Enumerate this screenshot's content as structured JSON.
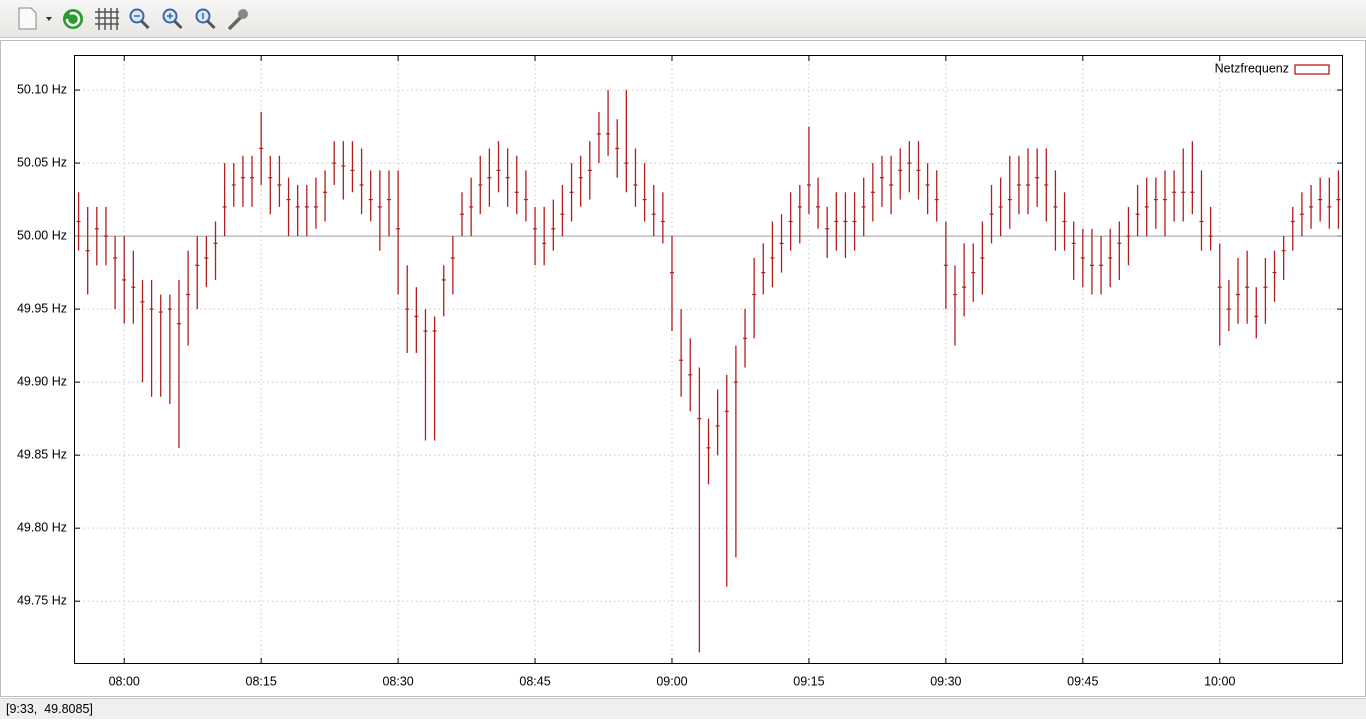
{
  "chart_data": {
    "type": "errorbar",
    "legend_position": "top-right",
    "grid": true,
    "reference_line": 50.0,
    "xlim": [
      474.5,
      613.5
    ],
    "xticks": [
      {
        "value": 480,
        "label": "08:00"
      },
      {
        "value": 495,
        "label": "08:15"
      },
      {
        "value": 510,
        "label": "08:30"
      },
      {
        "value": 525,
        "label": "08:45"
      },
      {
        "value": 540,
        "label": "09:00"
      },
      {
        "value": 555,
        "label": "09:15"
      },
      {
        "value": 570,
        "label": "09:30"
      },
      {
        "value": 585,
        "label": "09:45"
      },
      {
        "value": 600,
        "label": "10:00"
      }
    ],
    "ylim": [
      49.707,
      50.124
    ],
    "yticks": [
      {
        "value": 49.75,
        "label": "49.75 Hz"
      },
      {
        "value": 49.8,
        "label": "49.80 Hz"
      },
      {
        "value": 49.85,
        "label": "49.85 Hz"
      },
      {
        "value": 49.9,
        "label": "49.90 Hz"
      },
      {
        "value": 49.95,
        "label": "49.95 Hz"
      },
      {
        "value": 50.0,
        "label": "50.00 Hz"
      },
      {
        "value": 50.05,
        "label": "50.05 Hz"
      },
      {
        "value": 50.1,
        "label": "50.10 Hz"
      }
    ],
    "x": [
      475,
      476,
      477,
      478,
      479,
      480,
      481,
      482,
      483,
      484,
      485,
      486,
      487,
      488,
      489,
      490,
      491,
      492,
      493,
      494,
      495,
      496,
      497,
      498,
      499,
      500,
      501,
      502,
      503,
      504,
      505,
      506,
      507,
      508,
      509,
      510,
      511,
      512,
      513,
      514,
      515,
      516,
      517,
      518,
      519,
      520,
      521,
      522,
      523,
      524,
      525,
      526,
      527,
      528,
      529,
      530,
      531,
      532,
      533,
      534,
      535,
      536,
      537,
      538,
      539,
      540,
      541,
      542,
      543,
      544,
      545,
      546,
      547,
      548,
      549,
      550,
      551,
      552,
      553,
      554,
      555,
      556,
      557,
      558,
      559,
      560,
      561,
      562,
      563,
      564,
      565,
      566,
      567,
      568,
      569,
      570,
      571,
      572,
      573,
      574,
      575,
      576,
      577,
      578,
      579,
      580,
      581,
      582,
      583,
      584,
      585,
      586,
      587,
      588,
      589,
      590,
      591,
      592,
      593,
      594,
      595,
      596,
      597,
      598,
      599,
      600,
      601,
      602,
      603,
      604,
      605,
      606,
      607,
      608,
      609,
      610,
      611,
      612,
      613
    ],
    "series": [
      {
        "name": "Netzfrequenz",
        "color": "#b01e1e",
        "values": [
          50.01,
          49.99,
          50.005,
          50.0,
          49.985,
          49.97,
          49.965,
          49.955,
          49.95,
          49.948,
          49.95,
          49.94,
          49.96,
          49.98,
          49.985,
          49.995,
          50.02,
          50.035,
          50.04,
          50.04,
          50.06,
          50.04,
          50.035,
          50.025,
          50.02,
          50.02,
          50.02,
          50.03,
          50.05,
          50.048,
          50.045,
          50.035,
          50.025,
          50.02,
          50.025,
          50.005,
          49.95,
          49.945,
          49.935,
          49.935,
          49.97,
          49.985,
          50.015,
          50.02,
          50.035,
          50.04,
          50.045,
          50.04,
          50.03,
          50.025,
          50.005,
          49.995,
          50.005,
          50.015,
          50.03,
          50.04,
          50.045,
          50.07,
          50.07,
          50.06,
          50.05,
          50.035,
          50.025,
          50.015,
          50.01,
          49.975,
          49.915,
          49.905,
          49.875,
          49.855,
          49.87,
          49.88,
          49.9,
          49.93,
          49.96,
          49.975,
          49.985,
          49.995,
          50.01,
          50.02,
          50.035,
          50.02,
          50.005,
          50.01,
          50.01,
          50.01,
          50.02,
          50.03,
          50.04,
          50.035,
          50.045,
          50.05,
          50.045,
          50.035,
          50.025,
          49.98,
          49.96,
          49.965,
          49.975,
          49.985,
          50.015,
          50.02,
          50.025,
          50.035,
          50.035,
          50.04,
          50.035,
          50.02,
          50.01,
          49.995,
          49.985,
          49.98,
          49.98,
          49.985,
          49.995,
          50.0,
          50.015,
          50.02,
          50.025,
          50.025,
          50.03,
          50.03,
          50.03,
          50.01,
          50.0,
          49.965,
          49.95,
          49.96,
          49.965,
          49.945,
          49.965,
          49.975,
          49.99,
          50.01,
          50.015,
          50.02,
          50.025,
          50.02,
          50.025
        ],
        "low": [
          49.99,
          49.96,
          49.98,
          49.98,
          49.95,
          49.94,
          49.94,
          49.9,
          49.89,
          49.89,
          49.885,
          49.855,
          49.925,
          49.95,
          49.965,
          49.97,
          50.0,
          50.02,
          50.02,
          50.02,
          50.035,
          50.015,
          50.02,
          50.0,
          50.0,
          50.0,
          50.005,
          50.01,
          50.035,
          50.025,
          50.03,
          50.015,
          50.01,
          49.99,
          50.0,
          49.96,
          49.92,
          49.92,
          49.86,
          49.86,
          49.945,
          49.96,
          50.0,
          50.0,
          50.015,
          50.02,
          50.03,
          50.02,
          50.015,
          50.01,
          49.98,
          49.98,
          49.99,
          50.0,
          50.01,
          50.02,
          50.025,
          50.05,
          50.055,
          50.04,
          50.03,
          50.02,
          50.01,
          50.0,
          49.995,
          49.935,
          49.89,
          49.88,
          49.715,
          49.83,
          49.85,
          49.76,
          49.78,
          49.91,
          49.93,
          49.96,
          49.965,
          49.975,
          49.99,
          49.995,
          50.015,
          50.005,
          49.985,
          49.99,
          49.985,
          49.99,
          50.0,
          50.01,
          50.02,
          50.015,
          50.025,
          50.03,
          50.025,
          50.015,
          50.01,
          49.95,
          49.925,
          49.945,
          49.955,
          49.96,
          49.995,
          50.0,
          50.005,
          50.015,
          50.015,
          50.02,
          50.01,
          49.99,
          49.99,
          49.97,
          49.965,
          49.96,
          49.96,
          49.965,
          49.97,
          49.98,
          50.0,
          50.0,
          50.005,
          50.0,
          50.01,
          50.01,
          50.015,
          49.99,
          49.99,
          49.925,
          49.935,
          49.94,
          49.94,
          49.93,
          49.94,
          49.955,
          49.97,
          49.99,
          50.0,
          50.005,
          50.01,
          50.005,
          50.005
        ],
        "high": [
          50.03,
          50.02,
          50.02,
          50.02,
          50.0,
          50.0,
          49.99,
          49.97,
          49.97,
          49.96,
          49.96,
          49.97,
          49.99,
          50.0,
          50.0,
          50.01,
          50.05,
          50.05,
          50.055,
          50.055,
          50.085,
          50.055,
          50.055,
          50.04,
          50.035,
          50.035,
          50.04,
          50.045,
          50.065,
          50.065,
          50.065,
          50.06,
          50.045,
          50.045,
          50.045,
          50.045,
          49.98,
          49.965,
          49.95,
          49.945,
          49.98,
          50.0,
          50.03,
          50.04,
          50.055,
          50.06,
          50.065,
          50.06,
          50.055,
          50.045,
          50.02,
          50.02,
          50.025,
          50.035,
          50.05,
          50.055,
          50.065,
          50.085,
          50.1,
          50.08,
          50.1,
          50.06,
          50.05,
          50.035,
          50.03,
          50.0,
          49.95,
          49.93,
          49.91,
          49.875,
          49.895,
          49.905,
          49.925,
          49.95,
          49.985,
          49.995,
          50.01,
          50.015,
          50.03,
          50.035,
          50.075,
          50.04,
          50.02,
          50.03,
          50.03,
          50.03,
          50.04,
          50.05,
          50.055,
          50.055,
          50.06,
          50.065,
          50.065,
          50.05,
          50.045,
          50.01,
          49.98,
          49.995,
          49.995,
          50.01,
          50.035,
          50.04,
          50.055,
          50.055,
          50.06,
          50.06,
          50.06,
          50.045,
          50.03,
          50.01,
          50.005,
          50.005,
          50.0,
          50.005,
          50.01,
          50.02,
          50.035,
          50.04,
          50.04,
          50.045,
          50.045,
          50.06,
          50.065,
          50.045,
          50.02,
          49.995,
          49.97,
          49.985,
          49.99,
          49.965,
          49.985,
          49.99,
          50.0,
          50.02,
          50.03,
          50.035,
          50.04,
          50.04,
          50.045
        ]
      }
    ]
  },
  "status": "[9:33,  49.8085]"
}
